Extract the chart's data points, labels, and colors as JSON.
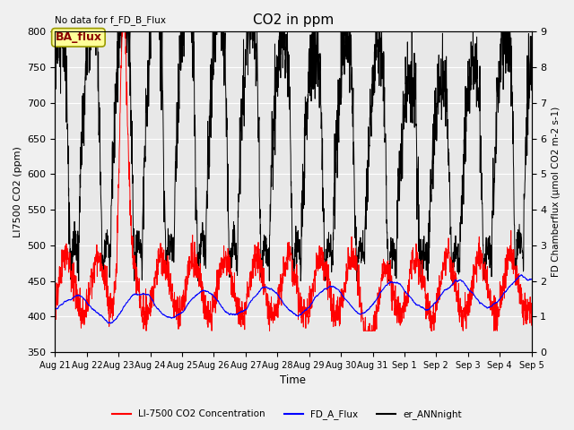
{
  "title": "CO2 in ppm",
  "top_left_text": "No data for f_FD_B_Flux",
  "ba_flux_label": "BA_flux",
  "ylabel_left": "LI7500 CO2 (ppm)",
  "ylabel_right": "FD Chamberflux (μmol CO2 m-2 s-1)",
  "xlabel": "Time",
  "ylim_left": [
    350,
    800
  ],
  "ylim_right": [
    0.0,
    9.0
  ],
  "yticks_left": [
    350,
    400,
    450,
    500,
    550,
    600,
    650,
    700,
    750,
    800
  ],
  "yticks_right": [
    0.0,
    1.0,
    2.0,
    3.0,
    4.0,
    5.0,
    6.0,
    7.0,
    8.0,
    9.0
  ],
  "date_labels": [
    "Aug 21",
    "Aug 22",
    "Aug 23",
    "Aug 24",
    "Aug 25",
    "Aug 26",
    "Aug 27",
    "Aug 28",
    "Aug 29",
    "Aug 30",
    "Aug 31",
    "Sep 1",
    "Sep 2",
    "Sep 3",
    "Sep 4",
    "Sep 5"
  ],
  "legend_entries": [
    "LI-7500 CO2 Concentration",
    "FD_A_Flux",
    "er_ANNnight"
  ],
  "background_color": "#f0f0f0",
  "axbg_color": "#e8e8e8",
  "grid_color": "white",
  "ba_flux_box_facecolor": "#ffff99",
  "ba_flux_box_edgecolor": "#999900",
  "ba_flux_text_color": "#8B0000",
  "n_days": 15,
  "n_points": 2160,
  "figsize": [
    6.4,
    4.8
  ],
  "dpi": 100
}
